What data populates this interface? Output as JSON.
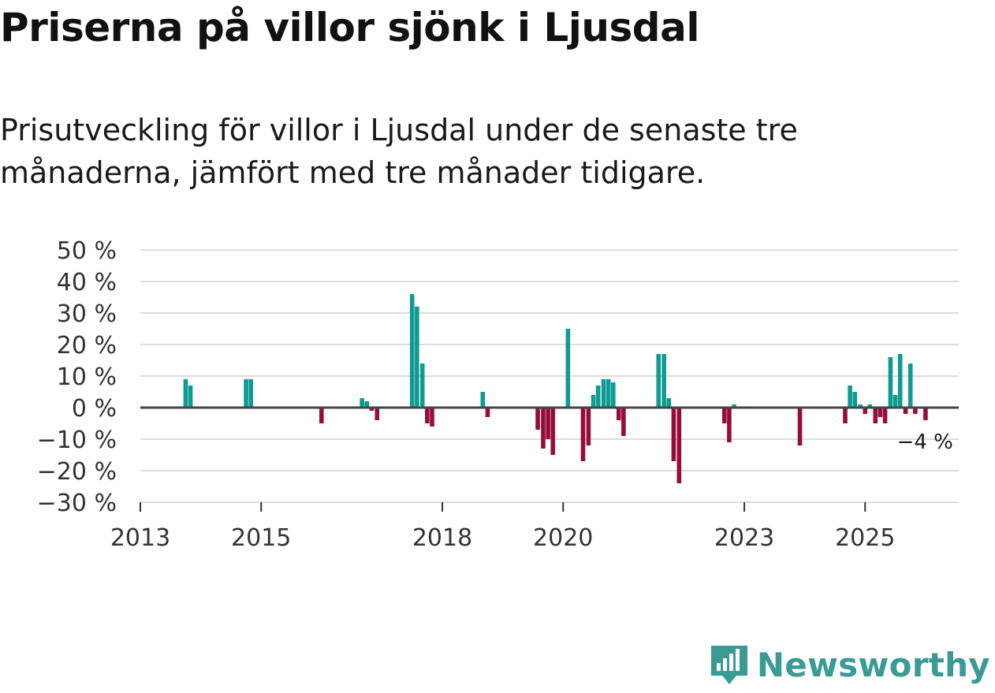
{
  "title": "Priserna på villor sjönk i Ljusdal",
  "subtitle": "Prisutveckling för villor i Ljusdal under de senaste tre månaderna, jämfört med tre månader tidigare.",
  "brand": {
    "name": "Newsworthy",
    "icon": "newsworthy-logo-icon",
    "color": "#3a9a95"
  },
  "colors": {
    "positive": "#0e9b92",
    "negative": "#980c3c",
    "grid": "#dddddd",
    "zero": "#444444"
  },
  "chart_data": {
    "type": "bar",
    "title": "Priserna på villor sjönk i Ljusdal",
    "ylabel": "",
    "xlabel": "",
    "ylim": [
      -30,
      50
    ],
    "xlim": [
      2013.0,
      2026.55
    ],
    "y_ticks": [
      50,
      40,
      30,
      20,
      10,
      0,
      -10,
      -20,
      -30
    ],
    "y_tick_labels": [
      "50 %",
      "40 %",
      "30 %",
      "20 %",
      "10 %",
      "0 %",
      "−10 %",
      "−20 %",
      "−30 %"
    ],
    "x_ticks": [
      2013,
      2015,
      2018,
      2020,
      2023,
      2025
    ],
    "x_tick_labels": [
      "2013",
      "2015",
      "2018",
      "2020",
      "2023",
      "2025"
    ],
    "last_value_label": "−4 %",
    "series": [
      {
        "name": "Prisutveckling",
        "points": [
          {
            "x": 2013.75,
            "y": 9
          },
          {
            "x": 2013.83,
            "y": 7
          },
          {
            "x": 2014.75,
            "y": 9
          },
          {
            "x": 2014.83,
            "y": 9
          },
          {
            "x": 2016.0,
            "y": -5
          },
          {
            "x": 2016.67,
            "y": 3
          },
          {
            "x": 2016.75,
            "y": 2
          },
          {
            "x": 2016.83,
            "y": -1
          },
          {
            "x": 2016.92,
            "y": -4
          },
          {
            "x": 2017.5,
            "y": 36
          },
          {
            "x": 2017.58,
            "y": 32
          },
          {
            "x": 2017.67,
            "y": 14
          },
          {
            "x": 2017.75,
            "y": -5
          },
          {
            "x": 2017.83,
            "y": -6
          },
          {
            "x": 2018.67,
            "y": 5
          },
          {
            "x": 2018.75,
            "y": -3
          },
          {
            "x": 2019.58,
            "y": -7
          },
          {
            "x": 2019.67,
            "y": -13
          },
          {
            "x": 2019.75,
            "y": -10
          },
          {
            "x": 2019.83,
            "y": -15
          },
          {
            "x": 2020.08,
            "y": 25
          },
          {
            "x": 2020.33,
            "y": -17
          },
          {
            "x": 2020.42,
            "y": -12
          },
          {
            "x": 2020.5,
            "y": 4
          },
          {
            "x": 2020.58,
            "y": 7
          },
          {
            "x": 2020.67,
            "y": 9
          },
          {
            "x": 2020.75,
            "y": 9
          },
          {
            "x": 2020.83,
            "y": 8
          },
          {
            "x": 2020.92,
            "y": -4
          },
          {
            "x": 2021.0,
            "y": -9
          },
          {
            "x": 2021.58,
            "y": 17
          },
          {
            "x": 2021.67,
            "y": 17
          },
          {
            "x": 2021.75,
            "y": 3
          },
          {
            "x": 2021.83,
            "y": -17
          },
          {
            "x": 2021.92,
            "y": -24
          },
          {
            "x": 2022.67,
            "y": -5
          },
          {
            "x": 2022.75,
            "y": -11
          },
          {
            "x": 2022.83,
            "y": 1
          },
          {
            "x": 2023.92,
            "y": -12
          },
          {
            "x": 2024.67,
            "y": -5
          },
          {
            "x": 2024.75,
            "y": 7
          },
          {
            "x": 2024.83,
            "y": 5
          },
          {
            "x": 2024.92,
            "y": 1
          },
          {
            "x": 2025.0,
            "y": -2
          },
          {
            "x": 2025.08,
            "y": 1
          },
          {
            "x": 2025.17,
            "y": -5
          },
          {
            "x": 2025.25,
            "y": -3
          },
          {
            "x": 2025.33,
            "y": -5
          },
          {
            "x": 2025.42,
            "y": 16
          },
          {
            "x": 2025.5,
            "y": 4
          },
          {
            "x": 2025.58,
            "y": 17
          },
          {
            "x": 2025.67,
            "y": -2
          },
          {
            "x": 2025.75,
            "y": 14
          },
          {
            "x": 2025.83,
            "y": -2
          },
          {
            "x": 2026.0,
            "y": -4
          }
        ]
      }
    ]
  }
}
